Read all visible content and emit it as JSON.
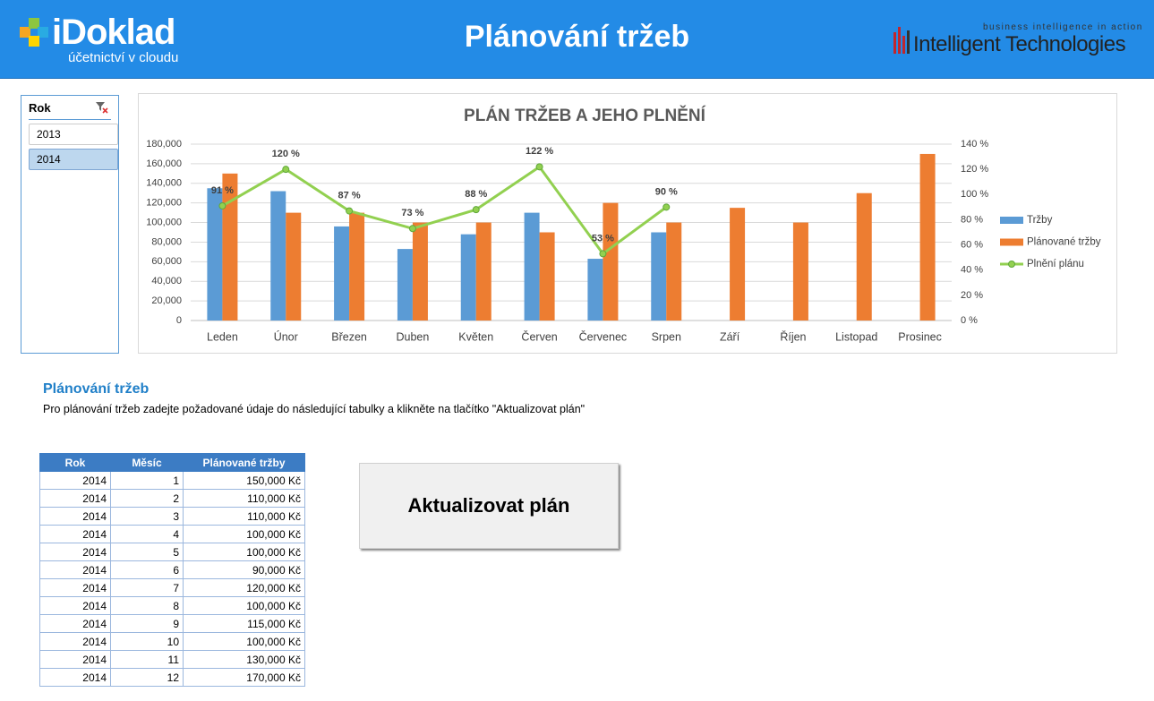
{
  "header": {
    "logo": "iDoklad",
    "logo_tagline": "účetnictví v cloudu",
    "title": "Plánování tržeb",
    "partner_tagline": "business intelligence in action",
    "partner": "Intelligent Technologies"
  },
  "slicer": {
    "title": "Rok",
    "items": [
      "2013",
      "2014"
    ]
  },
  "chart_data": {
    "type": "bar",
    "title": "PLÁN TRŽEB A JEHO PLNĚNÍ",
    "categories": [
      "Leden",
      "Únor",
      "Březen",
      "Duben",
      "Květen",
      "Červen",
      "Červenec",
      "Srpen",
      "Září",
      "Říjen",
      "Listopad",
      "Prosinec"
    ],
    "series": [
      {
        "name": "Tržby",
        "type": "bar",
        "color": "#5b9bd5",
        "values": [
          135000,
          132000,
          96000,
          73000,
          88000,
          110000,
          63000,
          90000,
          null,
          null,
          null,
          null
        ]
      },
      {
        "name": "Plánované tržby",
        "type": "bar",
        "color": "#ed7d31",
        "values": [
          150000,
          110000,
          110000,
          100000,
          100000,
          90000,
          120000,
          100000,
          115000,
          100000,
          130000,
          170000
        ]
      },
      {
        "name": "Plnění plánu",
        "type": "line",
        "axis": "y2",
        "color": "#92d050",
        "values": [
          91,
          120,
          87,
          73,
          88,
          122,
          53,
          90,
          null,
          null,
          null,
          null
        ],
        "value_labels": [
          "91 %",
          "120 %",
          "87 %",
          "73 %",
          "88 %",
          "122 %",
          "53 %",
          "90 %",
          null,
          null,
          null,
          null
        ]
      }
    ],
    "ylim": [
      0,
      180000
    ],
    "yticks": [
      0,
      {
        "value": 20000,
        "label": "20,000"
      },
      {
        "value": 40000,
        "label": "40,000"
      },
      {
        "value": 60000,
        "label": "60,000"
      },
      {
        "value": 80000,
        "label": "80,000"
      },
      {
        "value": 100000,
        "label": "100,000"
      },
      {
        "value": 120000,
        "label": "120,000"
      },
      {
        "value": 140000,
        "label": "140,000"
      },
      {
        "value": 160000,
        "label": "160,000"
      },
      {
        "value": 180000,
        "label": "180,000"
      }
    ],
    "y2lim": [
      0,
      140
    ],
    "y2ticks": [
      {
        "value": 0,
        "label": "0 %"
      },
      {
        "value": 20,
        "label": "20 %"
      },
      {
        "value": 40,
        "label": "40 %"
      },
      {
        "value": 60,
        "label": "60 %"
      },
      {
        "value": 80,
        "label": "80 %"
      },
      {
        "value": 100,
        "label": "100 %"
      },
      {
        "value": 120,
        "label": "120 %"
      },
      {
        "value": 140,
        "label": "140 %"
      }
    ],
    "grid": true,
    "legend": "right"
  },
  "section": {
    "title": "Plánování tržeb",
    "description": "Pro plánování tržeb zadejte požadované údaje do následující tabulky a klikněte na tlačítko \"Aktualizovat plán\""
  },
  "table": {
    "columns": [
      "Rok",
      "Měsíc",
      "Plánované tržby"
    ],
    "rows": [
      [
        "2014",
        "1",
        "150,000 Kč"
      ],
      [
        "2014",
        "2",
        "110,000 Kč"
      ],
      [
        "2014",
        "3",
        "110,000 Kč"
      ],
      [
        "2014",
        "4",
        "100,000 Kč"
      ],
      [
        "2014",
        "5",
        "100,000 Kč"
      ],
      [
        "2014",
        "6",
        "90,000 Kč"
      ],
      [
        "2014",
        "7",
        "120,000 Kč"
      ],
      [
        "2014",
        "8",
        "100,000 Kč"
      ],
      [
        "2014",
        "9",
        "115,000 Kč"
      ],
      [
        "2014",
        "10",
        "100,000 Kč"
      ],
      [
        "2014",
        "11",
        "130,000 Kč"
      ],
      [
        "2014",
        "12",
        "170,000 Kč"
      ]
    ]
  },
  "button": {
    "label": "Aktualizovat plán"
  }
}
